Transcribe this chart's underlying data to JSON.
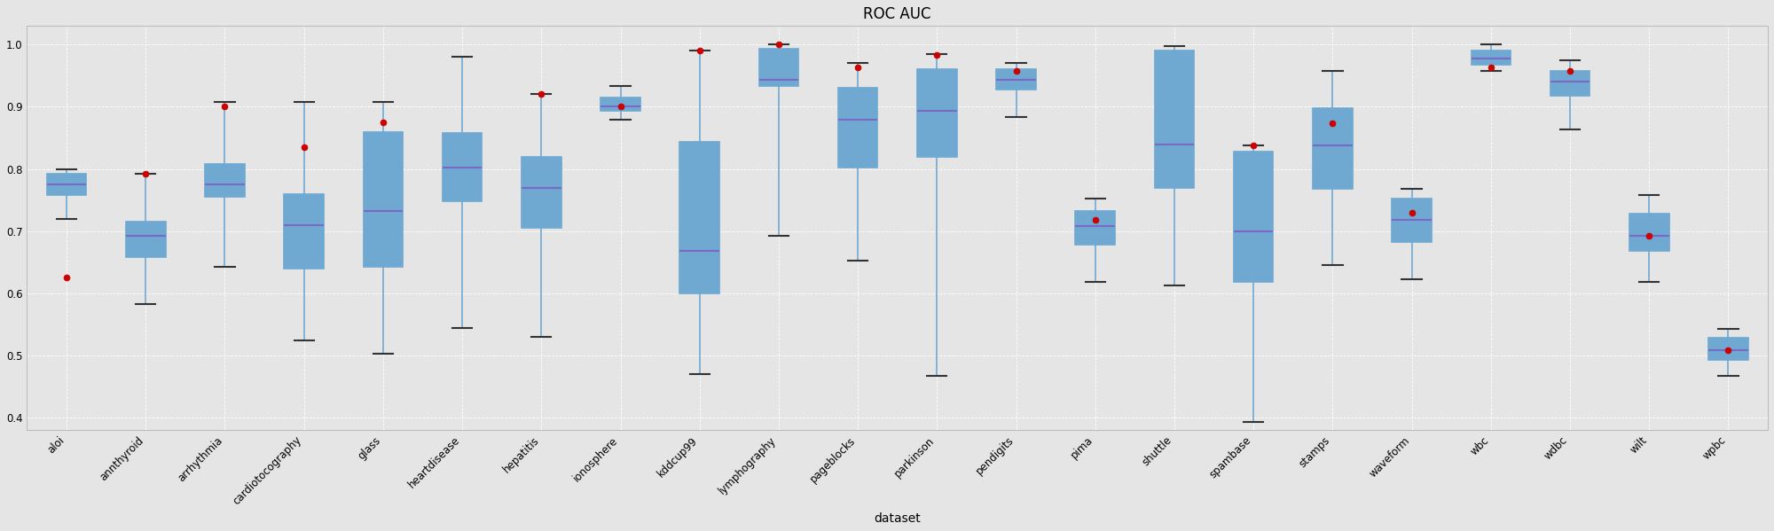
{
  "title": "ROC AUC",
  "xlabel": "dataset",
  "ylabel": "",
  "ylim": [
    0.38,
    1.03
  ],
  "yticks": [
    0.4,
    0.5,
    0.6,
    0.7,
    0.8,
    0.9,
    1.0
  ],
  "background_color": "#e5e5e5",
  "fig_color": "#e5e5e5",
  "box_edge_color": "#6fa8d0",
  "box_face_color": "#e5e5e5",
  "median_color": "#7b68c8",
  "whisker_color": "#6fa8d0",
  "cap_color": "#333333",
  "flier_color": "#cc0000",
  "grid_color": "#ffffff",
  "datasets": [
    "aloi",
    "annthyroid",
    "arrhythmia",
    "cardiotocography",
    "glass",
    "heartdisease",
    "hepatitis",
    "ionosphere",
    "kddcup99",
    "lymphography",
    "pageblocks",
    "parkinson",
    "pendigits",
    "pima",
    "shuttle",
    "spambase",
    "stamps",
    "waveform",
    "wbc",
    "wdbc",
    "wilt",
    "wpbc"
  ],
  "boxes": {
    "aloi": {
      "whislo": 0.72,
      "q1": 0.758,
      "med": 0.775,
      "q3": 0.792,
      "whishi": 0.8,
      "fliers": [
        0.625
      ]
    },
    "annthyroid": {
      "whislo": 0.583,
      "q1": 0.658,
      "med": 0.693,
      "q3": 0.715,
      "whishi": 0.793,
      "fliers": [
        0.793
      ]
    },
    "arrhythmia": {
      "whislo": 0.642,
      "q1": 0.755,
      "med": 0.775,
      "q3": 0.808,
      "whishi": 0.908,
      "fliers": [
        0.9
      ]
    },
    "cardiotocography": {
      "whislo": 0.525,
      "q1": 0.64,
      "med": 0.71,
      "q3": 0.76,
      "whishi": 0.908,
      "fliers": [
        0.835
      ]
    },
    "glass": {
      "whislo": 0.503,
      "q1": 0.643,
      "med": 0.733,
      "q3": 0.86,
      "whishi": 0.908,
      "fliers": [
        0.875
      ]
    },
    "heartdisease": {
      "whislo": 0.545,
      "q1": 0.748,
      "med": 0.803,
      "q3": 0.858,
      "whishi": 0.98,
      "fliers": []
    },
    "hepatitis": {
      "whislo": 0.53,
      "q1": 0.705,
      "med": 0.77,
      "q3": 0.82,
      "whishi": 0.92,
      "fliers": [
        0.92
      ]
    },
    "ionosphere": {
      "whislo": 0.88,
      "q1": 0.893,
      "med": 0.9,
      "q3": 0.915,
      "whishi": 0.933,
      "fliers": [
        0.9
      ]
    },
    "kddcup99": {
      "whislo": 0.47,
      "q1": 0.6,
      "med": 0.668,
      "q3": 0.843,
      "whishi": 0.99,
      "fliers": [
        0.99
      ]
    },
    "lymphography": {
      "whislo": 0.693,
      "q1": 0.933,
      "med": 0.943,
      "q3": 0.993,
      "whishi": 1.0,
      "fliers": [
        1.0
      ]
    },
    "pageblocks": {
      "whislo": 0.653,
      "q1": 0.803,
      "med": 0.88,
      "q3": 0.93,
      "whishi": 0.97,
      "fliers": [
        0.963
      ]
    },
    "parkinson": {
      "whislo": 0.468,
      "q1": 0.82,
      "med": 0.893,
      "q3": 0.96,
      "whishi": 0.985,
      "fliers": [
        0.983
      ]
    },
    "pendigits": {
      "whislo": 0.883,
      "q1": 0.928,
      "med": 0.943,
      "q3": 0.96,
      "whishi": 0.97,
      "fliers": [
        0.958
      ]
    },
    "pima": {
      "whislo": 0.618,
      "q1": 0.678,
      "med": 0.708,
      "q3": 0.733,
      "whishi": 0.753,
      "fliers": [
        0.718
      ]
    },
    "shuttle": {
      "whislo": 0.613,
      "q1": 0.77,
      "med": 0.84,
      "q3": 0.99,
      "whishi": 0.998,
      "fliers": []
    },
    "spambase": {
      "whislo": 0.393,
      "q1": 0.618,
      "med": 0.7,
      "q3": 0.828,
      "whishi": 0.838,
      "fliers": [
        0.838
      ]
    },
    "stamps": {
      "whislo": 0.645,
      "q1": 0.768,
      "med": 0.838,
      "q3": 0.898,
      "whishi": 0.958,
      "fliers": [
        0.873
      ]
    },
    "waveform": {
      "whislo": 0.623,
      "q1": 0.683,
      "med": 0.718,
      "q3": 0.753,
      "whishi": 0.768,
      "fliers": [
        0.73
      ]
    },
    "wbc": {
      "whislo": 0.958,
      "q1": 0.968,
      "med": 0.978,
      "q3": 0.99,
      "whishi": 1.0,
      "fliers": [
        0.963
      ]
    },
    "wdbc": {
      "whislo": 0.863,
      "q1": 0.918,
      "med": 0.94,
      "q3": 0.958,
      "whishi": 0.975,
      "fliers": [
        0.958
      ]
    },
    "wilt": {
      "whislo": 0.618,
      "q1": 0.668,
      "med": 0.693,
      "q3": 0.728,
      "whishi": 0.758,
      "fliers": [
        0.693
      ]
    },
    "wpbc": {
      "whislo": 0.468,
      "q1": 0.493,
      "med": 0.508,
      "q3": 0.528,
      "whishi": 0.543,
      "fliers": [
        0.508
      ]
    }
  }
}
